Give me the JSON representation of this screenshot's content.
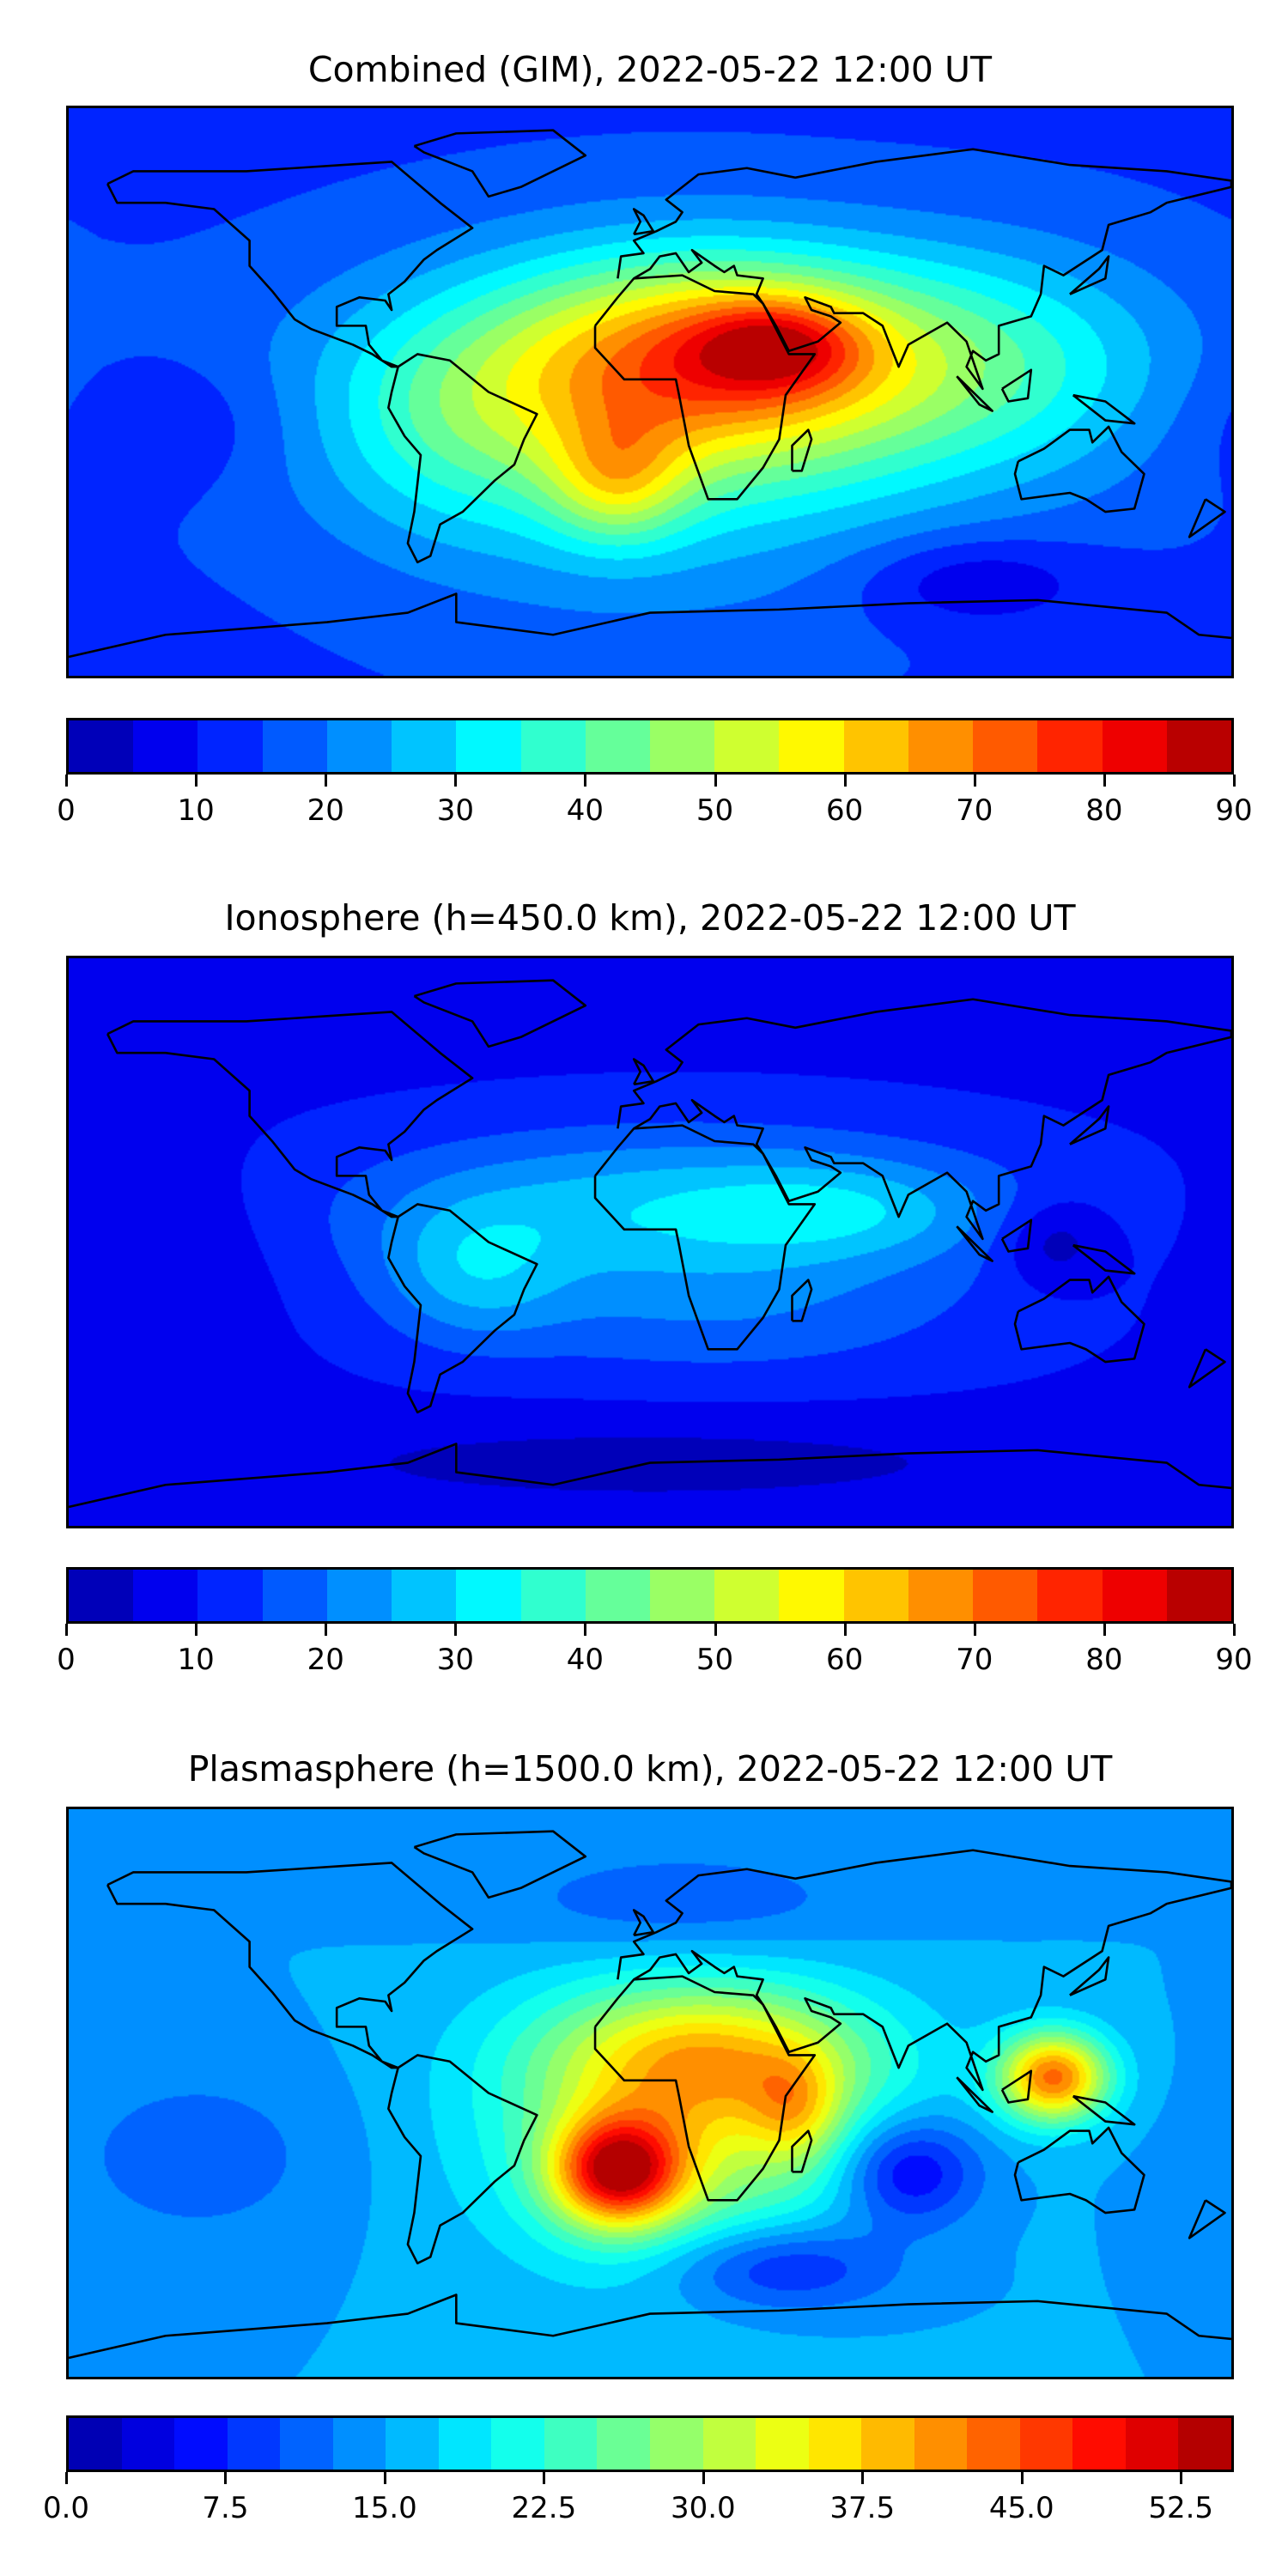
{
  "panels": [
    {
      "title": "Combined (GIM), 2022-05-22 12:00 UT",
      "colorbar": {
        "min": 0,
        "max": 90,
        "step": 5,
        "ticks": [
          "0",
          "10",
          "20",
          "30",
          "40",
          "50",
          "60",
          "70",
          "80",
          "90"
        ],
        "tick_values": [
          0,
          10,
          20,
          30,
          40,
          50,
          60,
          70,
          80,
          90
        ]
      },
      "field": {
        "base": 14,
        "features": [
          {
            "lon": 20,
            "lat": 12,
            "value": 38,
            "slon": 45,
            "slat": 22
          },
          {
            "lon": 40,
            "lat": 15,
            "value": 22,
            "slon": 18,
            "slat": 10
          },
          {
            "lon": -10,
            "lat": -28,
            "value": 22,
            "slon": 15,
            "slat": 14
          },
          {
            "lon": 10,
            "lat": 0,
            "value": 18,
            "slon": 80,
            "slat": 30
          },
          {
            "lon": 110,
            "lat": 10,
            "value": 14,
            "slon": 40,
            "slat": 25
          },
          {
            "lon": -60,
            "lat": -10,
            "value": 10,
            "slon": 30,
            "slat": 25
          },
          {
            "lon": -150,
            "lat": -10,
            "value": -6,
            "slon": 30,
            "slat": 15
          },
          {
            "lon": 100,
            "lat": -60,
            "value": -10,
            "slon": 25,
            "slat": 10
          },
          {
            "lon": 0,
            "lat": -20,
            "value": 10,
            "slon": 60,
            "slat": 40
          }
        ]
      }
    },
    {
      "title": "Ionosphere  (h=450.0 km), 2022-05-22 12:00 UT",
      "colorbar": {
        "min": 0,
        "max": 90,
        "step": 5,
        "ticks": [
          "0",
          "10",
          "20",
          "30",
          "40",
          "50",
          "60",
          "70",
          "80",
          "90"
        ],
        "tick_values": [
          0,
          10,
          20,
          30,
          40,
          50,
          60,
          70,
          80,
          90
        ]
      },
      "field": {
        "base": 9,
        "features": [
          {
            "lon": 10,
            "lat": 10,
            "value": 20,
            "slon": 70,
            "slat": 18
          },
          {
            "lon": 60,
            "lat": 10,
            "value": 8,
            "slon": 30,
            "slat": 10
          },
          {
            "lon": -55,
            "lat": -10,
            "value": 12,
            "slon": 20,
            "slat": 15
          },
          {
            "lon": 20,
            "lat": -25,
            "value": 8,
            "slon": 60,
            "slat": 15
          },
          {
            "lon": 125,
            "lat": 0,
            "value": -10,
            "slon": 12,
            "slat": 10
          },
          {
            "lon": -150,
            "lat": 0,
            "value": -4,
            "slon": 25,
            "slat": 20
          },
          {
            "lon": 0,
            "lat": -70,
            "value": -6,
            "slon": 90,
            "slat": 10
          }
        ]
      }
    },
    {
      "title": "Plasmasphere (h=1500.0 km), 2022-05-22 12:00 UT",
      "colorbar": {
        "min": 0,
        "max": 55,
        "step": 2.5,
        "ticks": [
          "0.0",
          "7.5",
          "15.0",
          "22.5",
          "30.0",
          "37.5",
          "45.0",
          "52.5"
        ],
        "tick_values": [
          0,
          7.5,
          15,
          22.5,
          30,
          37.5,
          45,
          52.5
        ]
      },
      "field": {
        "base": 15,
        "features": [
          {
            "lon": -10,
            "lat": -25,
            "value": 30,
            "slon": 14,
            "slat": 12
          },
          {
            "lon": 10,
            "lat": -10,
            "value": 16,
            "slon": 40,
            "slat": 30
          },
          {
            "lon": 20,
            "lat": 12,
            "value": 14,
            "slon": 35,
            "slat": 15
          },
          {
            "lon": 45,
            "lat": -5,
            "value": 10,
            "slon": 10,
            "slat": 12
          },
          {
            "lon": 125,
            "lat": 5,
            "value": 28,
            "slon": 12,
            "slat": 10
          },
          {
            "lon": 80,
            "lat": -25,
            "value": -12,
            "slon": 15,
            "slat": 12
          },
          {
            "lon": 40,
            "lat": -55,
            "value": -10,
            "slon": 25,
            "slat": 10
          },
          {
            "lon": -140,
            "lat": -20,
            "value": -4,
            "slon": 30,
            "slat": 20
          },
          {
            "lon": 10,
            "lat": 60,
            "value": -5,
            "slon": 40,
            "slat": 12
          }
        ]
      }
    }
  ]
}
